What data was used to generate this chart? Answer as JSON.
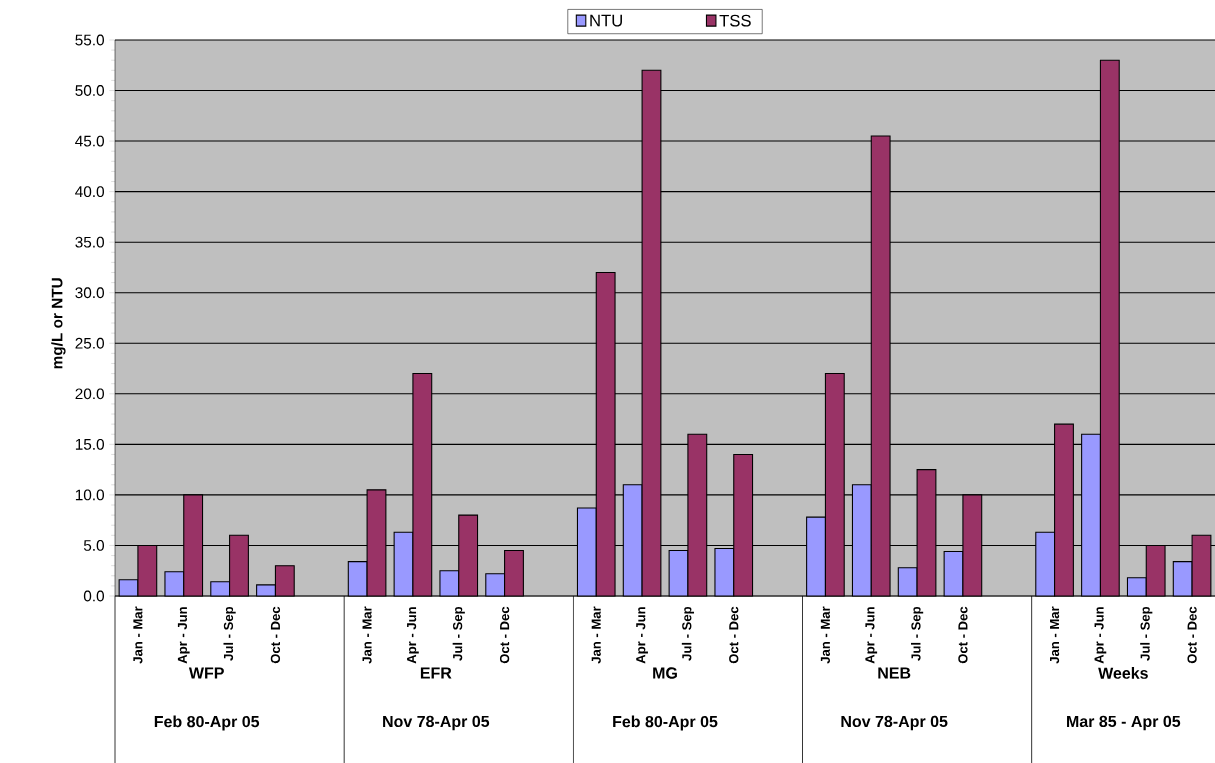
{
  "chart_data": {
    "type": "bar",
    "categories": [
      "Jan - Mar",
      "Apr - Jun",
      "Jul - Sep",
      "Oct - Dec",
      null,
      "Jan - Mar",
      "Apr - Jun",
      "Jul - Sep",
      "Oct - Dec",
      null,
      "Jan - Mar",
      "Apr - Jun",
      "Jul - Sep",
      "Oct - Dec",
      null,
      "Jan - Mar",
      "Apr - Jun",
      "Jul - Sep",
      "Oct - Dec",
      null,
      "Jan - Mar",
      "Apr - Jun",
      "Jul - Sep",
      "Oct - Dec"
    ],
    "series": [
      {
        "name": "NTU",
        "color": "#9999ff",
        "values": [
          1.6,
          2.4,
          1.4,
          1.1,
          null,
          3.4,
          6.3,
          2.5,
          2.2,
          null,
          8.7,
          11.0,
          4.5,
          4.7,
          null,
          7.8,
          11.0,
          2.8,
          4.4,
          null,
          6.3,
          16.0,
          1.8,
          3.4
        ]
      },
      {
        "name": "TSS",
        "color": "#993366",
        "values": [
          5.0,
          10.0,
          6.0,
          3.0,
          null,
          10.5,
          22.0,
          8.0,
          4.5,
          null,
          32.0,
          52.0,
          16.0,
          14.0,
          null,
          22.0,
          45.5,
          12.5,
          10.0,
          null,
          17.0,
          53.0,
          5.0,
          6.0
        ]
      }
    ],
    "ylabel": "mg/L or NTU",
    "ylim": [
      0,
      55
    ],
    "yticks": [
      {
        "value": 0,
        "label": "0.0"
      },
      {
        "value": 5,
        "label": "5.0"
      },
      {
        "value": 10,
        "label": "10.0"
      },
      {
        "value": 15,
        "label": "15.0"
      },
      {
        "value": 20,
        "label": "20.0"
      },
      {
        "value": 25,
        "label": "25.0"
      },
      {
        "value": 30,
        "label": "30.0"
      },
      {
        "value": 35,
        "label": "35.0"
      },
      {
        "value": 40,
        "label": "40.0"
      },
      {
        "value": 45,
        "label": "45.0"
      },
      {
        "value": 50,
        "label": "50.0"
      },
      {
        "value": 55,
        "label": "55.0"
      }
    ],
    "annotations": [
      "WFP",
      "Feb 80-Apr 05",
      "EFR",
      "Nov 78-Apr 05",
      "MG",
      "Feb 80-Apr 05",
      "NEB",
      "Nov 78-Apr 05",
      "Weeks",
      "Mar 85 - Apr 05"
    ],
    "grid": "y",
    "legend": "top"
  }
}
